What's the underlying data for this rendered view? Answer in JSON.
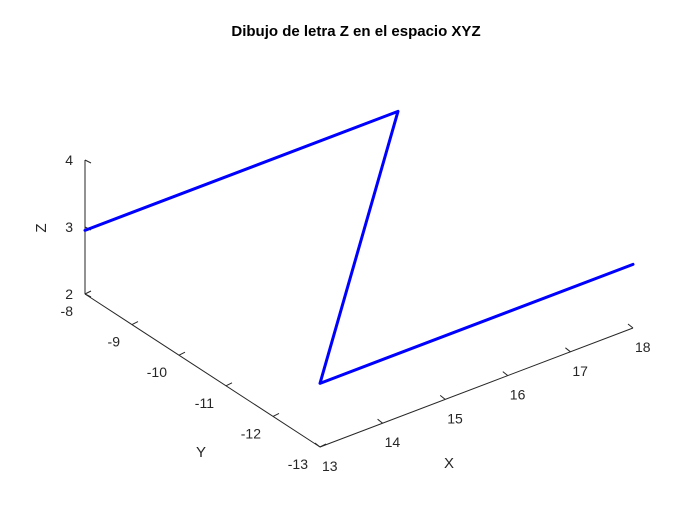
{
  "chart_data": {
    "type": "line",
    "title": "Dibujo de letra Z en el espacio XYZ",
    "xlabel": "X",
    "ylabel": "Y",
    "zlabel": "Z",
    "xlim": [
      13,
      18
    ],
    "ylim": [
      -13,
      -8
    ],
    "zlim": [
      2,
      4
    ],
    "xticks": [
      "13",
      "14",
      "15",
      "16",
      "17",
      "18"
    ],
    "yticks": [
      "-8",
      "-9",
      "-10",
      "-11",
      "-12",
      "-13"
    ],
    "zticks": [
      "2",
      "3",
      "4"
    ],
    "grid": false,
    "series": [
      {
        "color": "#0000ff",
        "x": [
          13,
          18,
          13,
          18
        ],
        "y": [
          -8,
          -8,
          -13,
          -13
        ],
        "z": [
          2.95,
          2.95,
          2.95,
          2.95
        ]
      }
    ]
  }
}
